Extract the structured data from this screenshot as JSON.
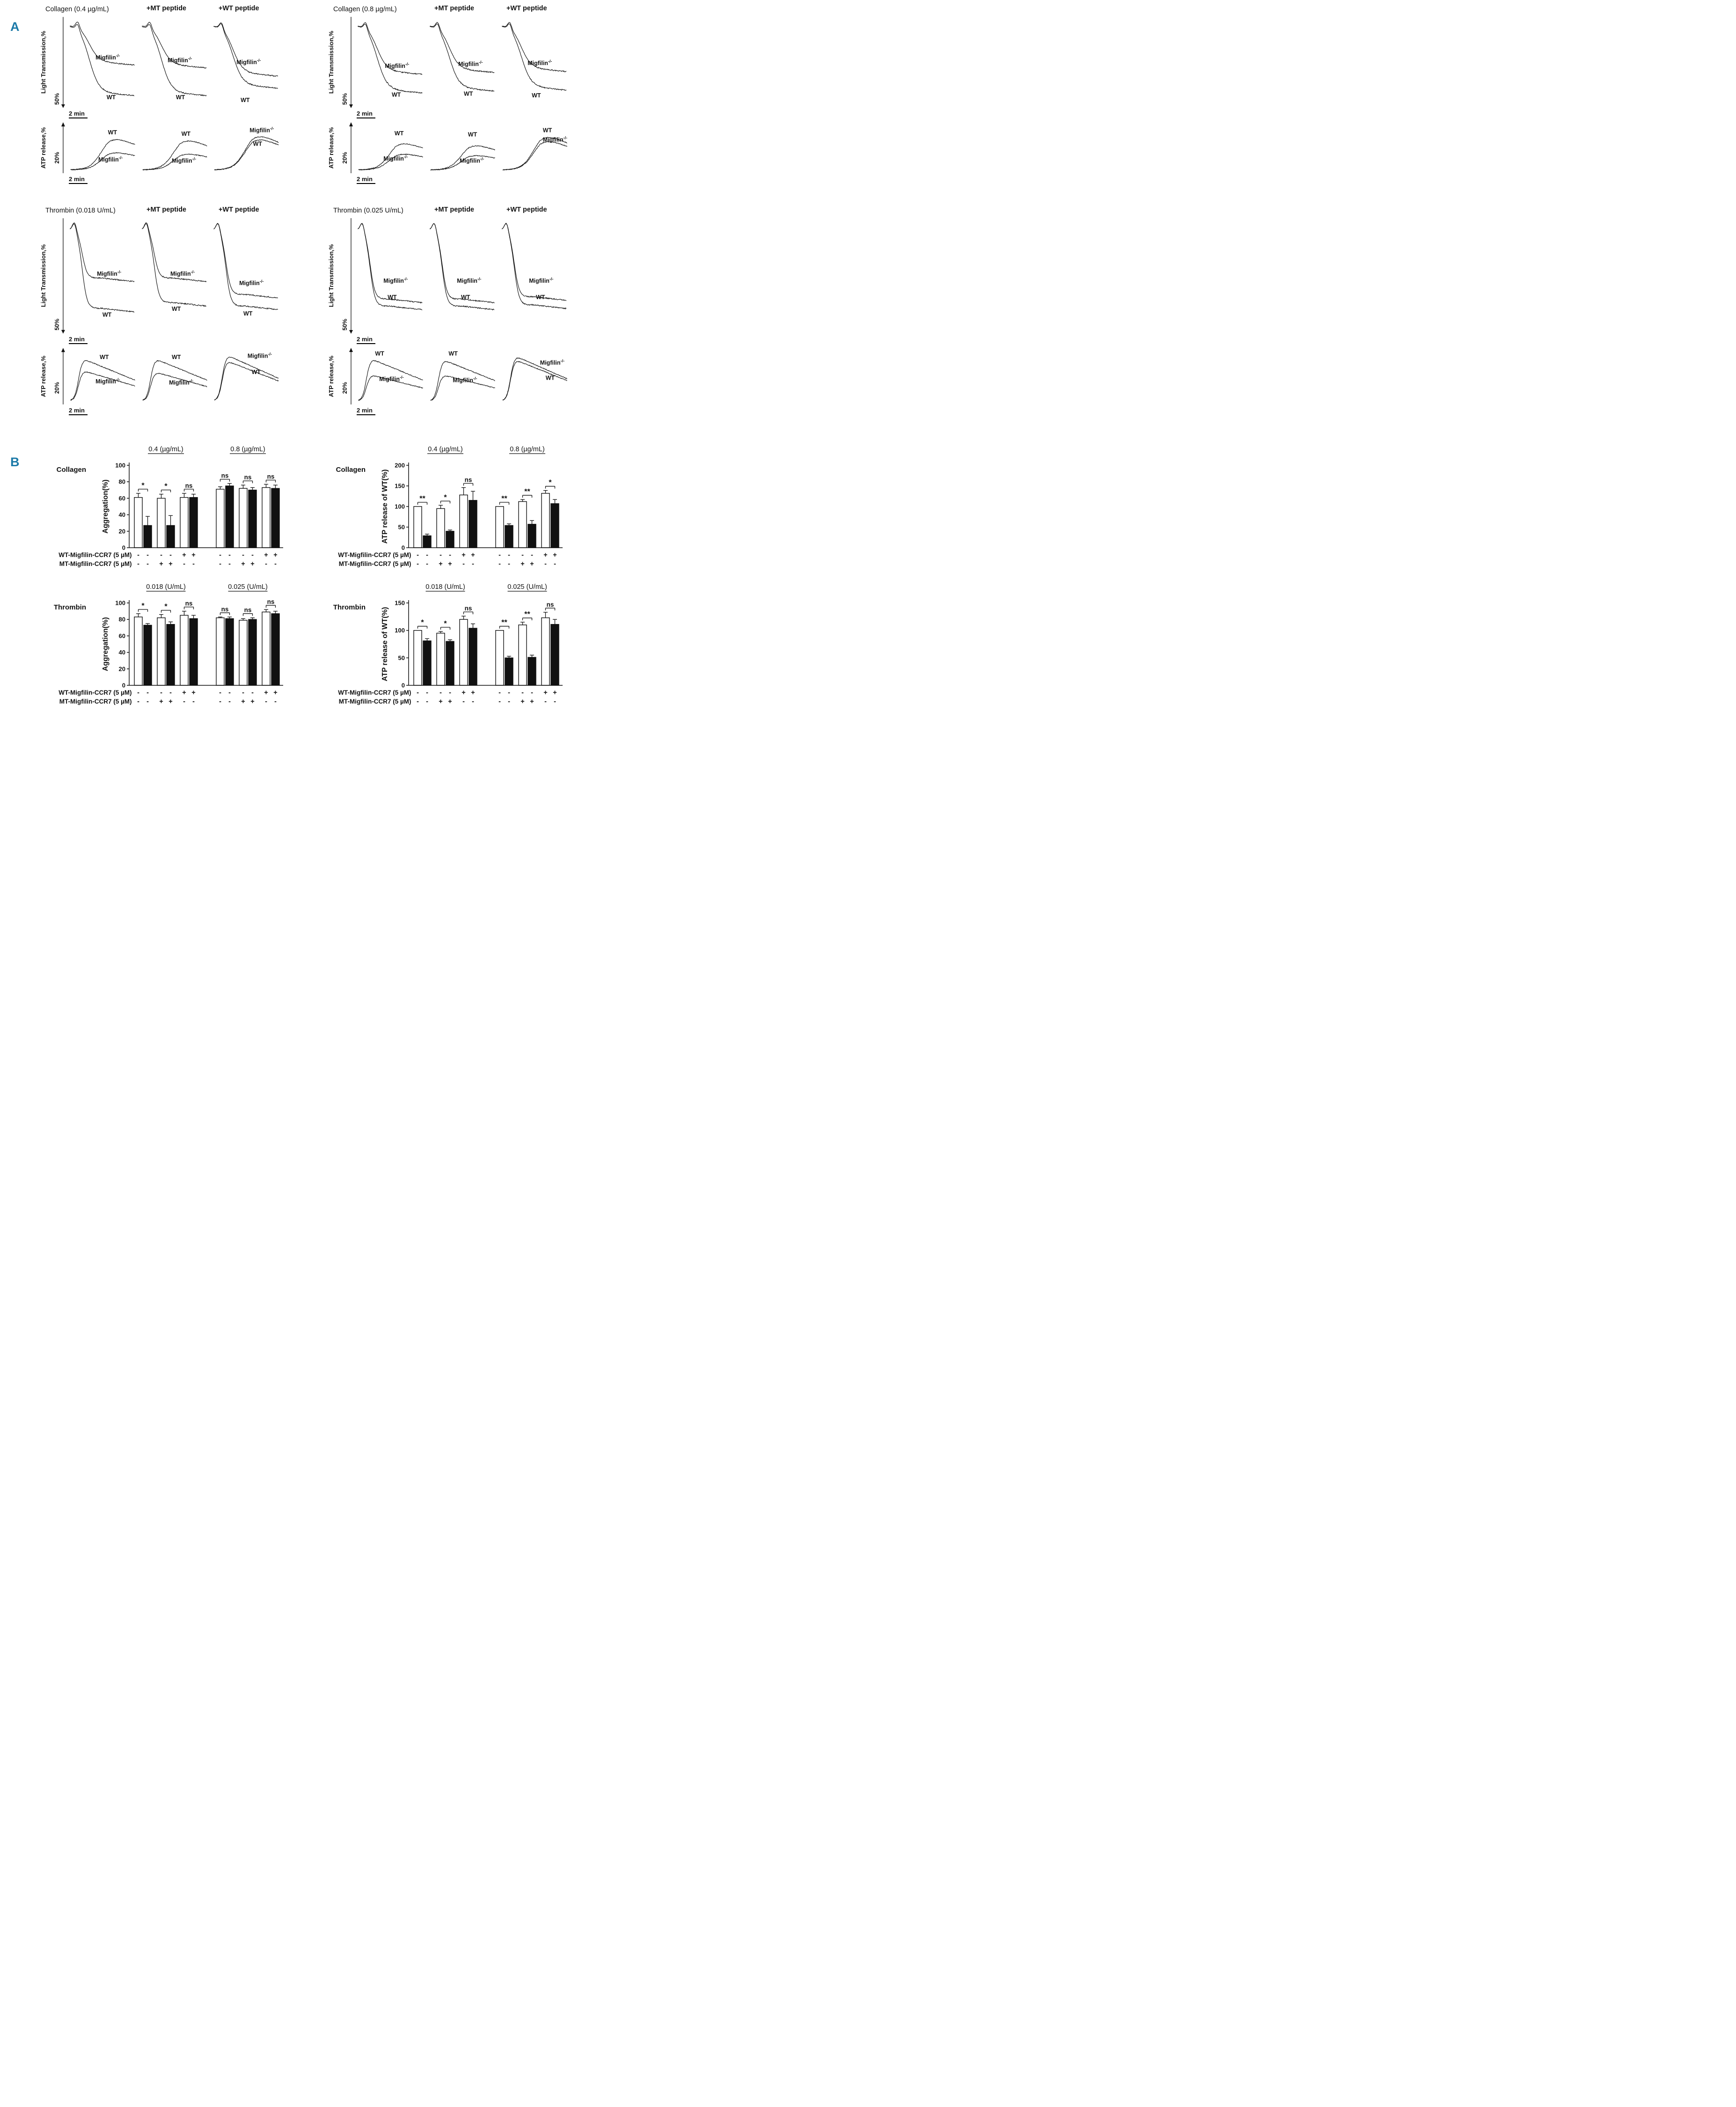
{
  "figure": {
    "panel_a_label": "A",
    "panel_b_label": "B",
    "panel_label_color": "#1c7aa8",
    "trace_color": "#151515"
  },
  "chart_data": [
    {
      "type": "line",
      "id": "traces-collagen-0.4",
      "title": "Collagen (0.4 µg/mL)",
      "kinetics": "slow",
      "panels": [
        "",
        "+MT peptide",
        "+WT peptide"
      ],
      "lt": {
        "ylabel": "Light Transmission,%",
        "yscale": "50%",
        "xscale": "2 min",
        "series": [
          [
            {
              "label": "Migfilin-/-",
              "drop": 0.5,
              "lx": 0.4,
              "ly": 0.47
            },
            {
              "label": "WT",
              "drop": 0.83,
              "lx": 0.56,
              "ly": 0.9
            }
          ],
          [
            {
              "label": "Migfilin-/-",
              "drop": 0.53,
              "lx": 0.4,
              "ly": 0.5
            },
            {
              "label": "WT",
              "drop": 0.83,
              "lx": 0.52,
              "ly": 0.9
            }
          ],
          [
            {
              "label": "Migfilin-/-",
              "drop": 0.62,
              "lx": 0.36,
              "ly": 0.52
            },
            {
              "label": "WT",
              "drop": 0.75,
              "lx": 0.42,
              "ly": 0.93
            }
          ]
        ]
      },
      "atp": {
        "ylabel": "ATP release,%",
        "yscale": "20%",
        "xscale": "2 min",
        "series": [
          [
            {
              "label": "WT",
              "peak": 0.78,
              "lx": 0.58,
              "ly": 0.24
            },
            {
              "label": "Migfilin-/-",
              "peak": 0.4,
              "lx": 0.44,
              "ly": 0.76
            }
          ],
          [
            {
              "label": "WT",
              "peak": 0.74,
              "lx": 0.6,
              "ly": 0.27
            },
            {
              "label": "Migfilin-/-",
              "peak": 0.36,
              "lx": 0.46,
              "ly": 0.78
            }
          ],
          [
            {
              "label": "Migfilin-/-",
              "peak": 0.86,
              "lx": 0.55,
              "ly": 0.2
            },
            {
              "label": "WT",
              "peak": 0.77,
              "lx": 0.6,
              "ly": 0.46
            }
          ]
        ]
      }
    },
    {
      "type": "line",
      "id": "traces-collagen-0.8",
      "title": "Collagen (0.8 µg/mL)",
      "kinetics": "slow",
      "panels": [
        "",
        "+MT peptide",
        "+WT peptide"
      ],
      "lt": {
        "ylabel": "Light Transmission,%",
        "yscale": "50%",
        "xscale": "2 min",
        "series": [
          [
            {
              "label": "Migfilin-/-",
              "drop": 0.6,
              "lx": 0.42,
              "ly": 0.56
            },
            {
              "label": "WT",
              "drop": 0.8,
              "lx": 0.52,
              "ly": 0.87
            }
          ],
          [
            {
              "label": "Migfilin-/-",
              "drop": 0.58,
              "lx": 0.44,
              "ly": 0.54
            },
            {
              "label": "WT",
              "drop": 0.78,
              "lx": 0.52,
              "ly": 0.86
            }
          ],
          [
            {
              "label": "Migfilin-/-",
              "drop": 0.57,
              "lx": 0.4,
              "ly": 0.53
            },
            {
              "label": "WT",
              "drop": 0.77,
              "lx": 0.46,
              "ly": 0.88
            }
          ]
        ]
      },
      "atp": {
        "ylabel": "ATP release,%",
        "yscale": "20%",
        "xscale": "2 min",
        "series": [
          [
            {
              "label": "WT",
              "peak": 0.66,
              "lx": 0.56,
              "ly": 0.26
            },
            {
              "label": "Migfilin-/-",
              "peak": 0.36,
              "lx": 0.4,
              "ly": 0.74
            }
          ],
          [
            {
              "label": "WT",
              "peak": 0.6,
              "lx": 0.58,
              "ly": 0.28
            },
            {
              "label": "Migfilin-/-",
              "peak": 0.32,
              "lx": 0.46,
              "ly": 0.78
            }
          ],
          [
            {
              "label": "WT",
              "peak": 0.84,
              "lx": 0.62,
              "ly": 0.2
            },
            {
              "label": "Migfilin-/-",
              "peak": 0.72,
              "lx": 0.62,
              "ly": 0.38
            }
          ]
        ]
      }
    },
    {
      "type": "line",
      "id": "traces-thrombin-0.018",
      "title": "Thrombin (0.018 U/mL)",
      "kinetics": "fast",
      "panels": [
        "",
        "+MT peptide",
        "+WT peptide"
      ],
      "lt": {
        "ylabel": "Light Transmission,%",
        "yscale": "50%",
        "xscale": "2 min",
        "series": [
          [
            {
              "label": "Migfilin-/-",
              "drop": 0.52,
              "lx": 0.42,
              "ly": 0.5
            },
            {
              "label": "WT",
              "drop": 0.78,
              "lx": 0.5,
              "ly": 0.85
            }
          ],
          [
            {
              "label": "Migfilin-/-",
              "drop": 0.52,
              "lx": 0.44,
              "ly": 0.5
            },
            {
              "label": "WT",
              "drop": 0.73,
              "lx": 0.46,
              "ly": 0.8
            }
          ],
          [
            {
              "label": "Migfilin-/-",
              "drop": 0.66,
              "lx": 0.4,
              "ly": 0.58
            },
            {
              "label": "WT",
              "drop": 0.76,
              "lx": 0.46,
              "ly": 0.84
            }
          ]
        ]
      },
      "atp": {
        "ylabel": "ATP release,%",
        "yscale": "20%",
        "xscale": "2 min",
        "series": [
          [
            {
              "label": "WT",
              "peak": 0.8,
              "lx": 0.46,
              "ly": 0.2
            },
            {
              "label": "Migfilin-/-",
              "peak": 0.55,
              "lx": 0.4,
              "ly": 0.62
            }
          ],
          [
            {
              "label": "WT",
              "peak": 0.8,
              "lx": 0.46,
              "ly": 0.2
            },
            {
              "label": "Migfilin-/-",
              "peak": 0.52,
              "lx": 0.42,
              "ly": 0.64
            }
          ],
          [
            {
              "label": "Migfilin-/-",
              "peak": 0.88,
              "lx": 0.52,
              "ly": 0.18
            },
            {
              "label": "WT",
              "peak": 0.76,
              "lx": 0.58,
              "ly": 0.46
            }
          ]
        ]
      }
    },
    {
      "type": "line",
      "id": "traces-thrombin-0.025",
      "title": "Thrombin (0.025 U/mL)",
      "kinetics": "fast",
      "panels": [
        "",
        "+MT peptide",
        "+WT peptide"
      ],
      "lt": {
        "ylabel": "Light Transmission,%",
        "yscale": "50%",
        "xscale": "2 min",
        "series": [
          [
            {
              "label": "Migfilin-/-",
              "drop": 0.7,
              "lx": 0.4,
              "ly": 0.56
            },
            {
              "label": "WT",
              "drop": 0.76,
              "lx": 0.46,
              "ly": 0.7
            }
          ],
          [
            {
              "label": "Migfilin-/-",
              "drop": 0.7,
              "lx": 0.42,
              "ly": 0.56
            },
            {
              "label": "WT",
              "drop": 0.76,
              "lx": 0.48,
              "ly": 0.7
            }
          ],
          [
            {
              "label": "Migfilin-/-",
              "drop": 0.68,
              "lx": 0.42,
              "ly": 0.56
            },
            {
              "label": "WT",
              "drop": 0.75,
              "lx": 0.52,
              "ly": 0.7
            }
          ]
        ]
      },
      "atp": {
        "ylabel": "ATP release,%",
        "yscale": "20%",
        "xscale": "2 min",
        "series": [
          [
            {
              "label": "WT",
              "peak": 0.8,
              "lx": 0.28,
              "ly": 0.14
            },
            {
              "label": "Migfilin-/-",
              "peak": 0.46,
              "lx": 0.34,
              "ly": 0.58
            }
          ],
          [
            {
              "label": "WT",
              "peak": 0.78,
              "lx": 0.3,
              "ly": 0.14
            },
            {
              "label": "Migfilin-/-",
              "peak": 0.46,
              "lx": 0.36,
              "ly": 0.6
            }
          ],
          [
            {
              "label": "Migfilin-/-",
              "peak": 0.78,
              "lx": 0.58,
              "ly": 0.3
            },
            {
              "label": "WT",
              "peak": 0.86,
              "lx": 0.66,
              "ly": 0.56
            }
          ]
        ]
      }
    },
    {
      "type": "bar",
      "id": "collagen-aggregation",
      "name": "Collagen",
      "ylabel": "Aggregation(%)",
      "ymax": 100,
      "yticks": [
        0,
        20,
        40,
        60,
        80,
        100
      ],
      "groups": [
        {
          "header": "0.4 (µg/mL)",
          "values": [
            61,
            27,
            60,
            27,
            61,
            61
          ],
          "errors": [
            5,
            11,
            5,
            12,
            5,
            4
          ],
          "sig": [
            "*",
            "*",
            "ns"
          ]
        },
        {
          "header": "0.8 (µg/mL)",
          "values": [
            71,
            75,
            72,
            70,
            73,
            72
          ],
          "errors": [
            3,
            3,
            4,
            3,
            4,
            4
          ],
          "sig": [
            "ns",
            "ns",
            "ns"
          ]
        }
      ],
      "condition_rows": [
        {
          "label": "WT-Migfilin-CCR7 (5 µM)",
          "signs": [
            "-",
            "-",
            "-",
            "-",
            "+",
            "+",
            "-",
            "-",
            "-",
            "-",
            "+",
            "+"
          ]
        },
        {
          "label": "MT-Migfilin-CCR7 (5 µM)",
          "signs": [
            "-",
            "-",
            "+",
            "+",
            "-",
            "-",
            "-",
            "-",
            "+",
            "+",
            "-",
            "-"
          ]
        }
      ]
    },
    {
      "type": "bar",
      "id": "collagen-atp-release",
      "name": "Collagen",
      "ylabel": "ATP release of WT(%)",
      "ymax": 200,
      "yticks": [
        0,
        50,
        100,
        150,
        200
      ],
      "groups": [
        {
          "header": "0.4 (µg/mL)",
          "values": [
            100,
            29,
            95,
            40,
            128,
            115
          ],
          "errors": [
            0,
            4,
            8,
            3,
            18,
            22
          ],
          "sig": [
            "**",
            "*",
            "ns"
          ]
        },
        {
          "header": "0.8 (µg/mL)",
          "values": [
            100,
            54,
            112,
            57,
            132,
            107
          ],
          "errors": [
            0,
            4,
            5,
            9,
            7,
            10
          ],
          "sig": [
            "**",
            "**",
            "*"
          ]
        }
      ],
      "condition_rows": [
        {
          "label": "WT-Migfilin-CCR7 (5 µM)",
          "signs": [
            "-",
            "-",
            "-",
            "-",
            "+",
            "+",
            "-",
            "-",
            "-",
            "-",
            "+",
            "+"
          ]
        },
        {
          "label": "MT-Migfilin-CCR7 (5 µM)",
          "signs": [
            "-",
            "-",
            "+",
            "+",
            "-",
            "-",
            "-",
            "-",
            "+",
            "+",
            "-",
            "-"
          ]
        }
      ]
    },
    {
      "type": "bar",
      "id": "thrombin-aggregation",
      "name": "Thrombin",
      "ylabel": "Aggregation(%)",
      "ymax": 100,
      "yticks": [
        0,
        20,
        40,
        60,
        80,
        100
      ],
      "groups": [
        {
          "header": "0.018 (U/mL)",
          "values": [
            83,
            73,
            82,
            74,
            85,
            81
          ],
          "errors": [
            4,
            2,
            4,
            3,
            5,
            4
          ],
          "sig": [
            "*",
            "*",
            "ns"
          ]
        },
        {
          "header": "0.025 (U/mL)",
          "values": [
            82,
            81,
            79,
            80,
            89,
            87
          ],
          "errors": [
            1,
            2,
            2,
            2,
            3,
            3
          ],
          "sig": [
            "ns",
            "ns",
            "ns"
          ]
        }
      ],
      "condition_rows": [
        {
          "label": "WT-Migfilin-CCR7 (5 µM)",
          "signs": [
            "-",
            "-",
            "-",
            "-",
            "+",
            "+",
            "-",
            "-",
            "-",
            "-",
            "+",
            "+"
          ]
        },
        {
          "label": "MT-Migfilin-CCR7 (5 µM)",
          "signs": [
            "-",
            "-",
            "+",
            "+",
            "-",
            "-",
            "-",
            "-",
            "+",
            "+",
            "-",
            "-"
          ]
        }
      ]
    },
    {
      "type": "bar",
      "id": "thrombin-atp-release",
      "name": "Thrombin",
      "ylabel": "ATP release of WT(%)",
      "ymax": 150,
      "yticks": [
        0,
        50,
        100,
        150
      ],
      "groups": [
        {
          "header": "0.018 (U/mL)",
          "values": [
            100,
            81,
            95,
            80,
            120,
            104
          ],
          "errors": [
            0,
            4,
            3,
            3,
            6,
            8
          ],
          "sig": [
            "*",
            "*",
            "ns"
          ]
        },
        {
          "header": "0.025 (U/mL)",
          "values": [
            100,
            50,
            110,
            51,
            123,
            111
          ],
          "errors": [
            0,
            3,
            5,
            4,
            10,
            9
          ],
          "sig": [
            "**",
            "**",
            "ns"
          ]
        }
      ],
      "condition_rows": [
        {
          "label": "WT-Migfilin-CCR7 (5 µM)",
          "signs": [
            "-",
            "-",
            "-",
            "-",
            "+",
            "+",
            "-",
            "-",
            "-",
            "-",
            "+",
            "+"
          ]
        },
        {
          "label": "MT-Migfilin-CCR7 (5 µM)",
          "signs": [
            "-",
            "-",
            "+",
            "+",
            "-",
            "-",
            "-",
            "-",
            "+",
            "+",
            "-",
            "-"
          ]
        }
      ]
    }
  ]
}
